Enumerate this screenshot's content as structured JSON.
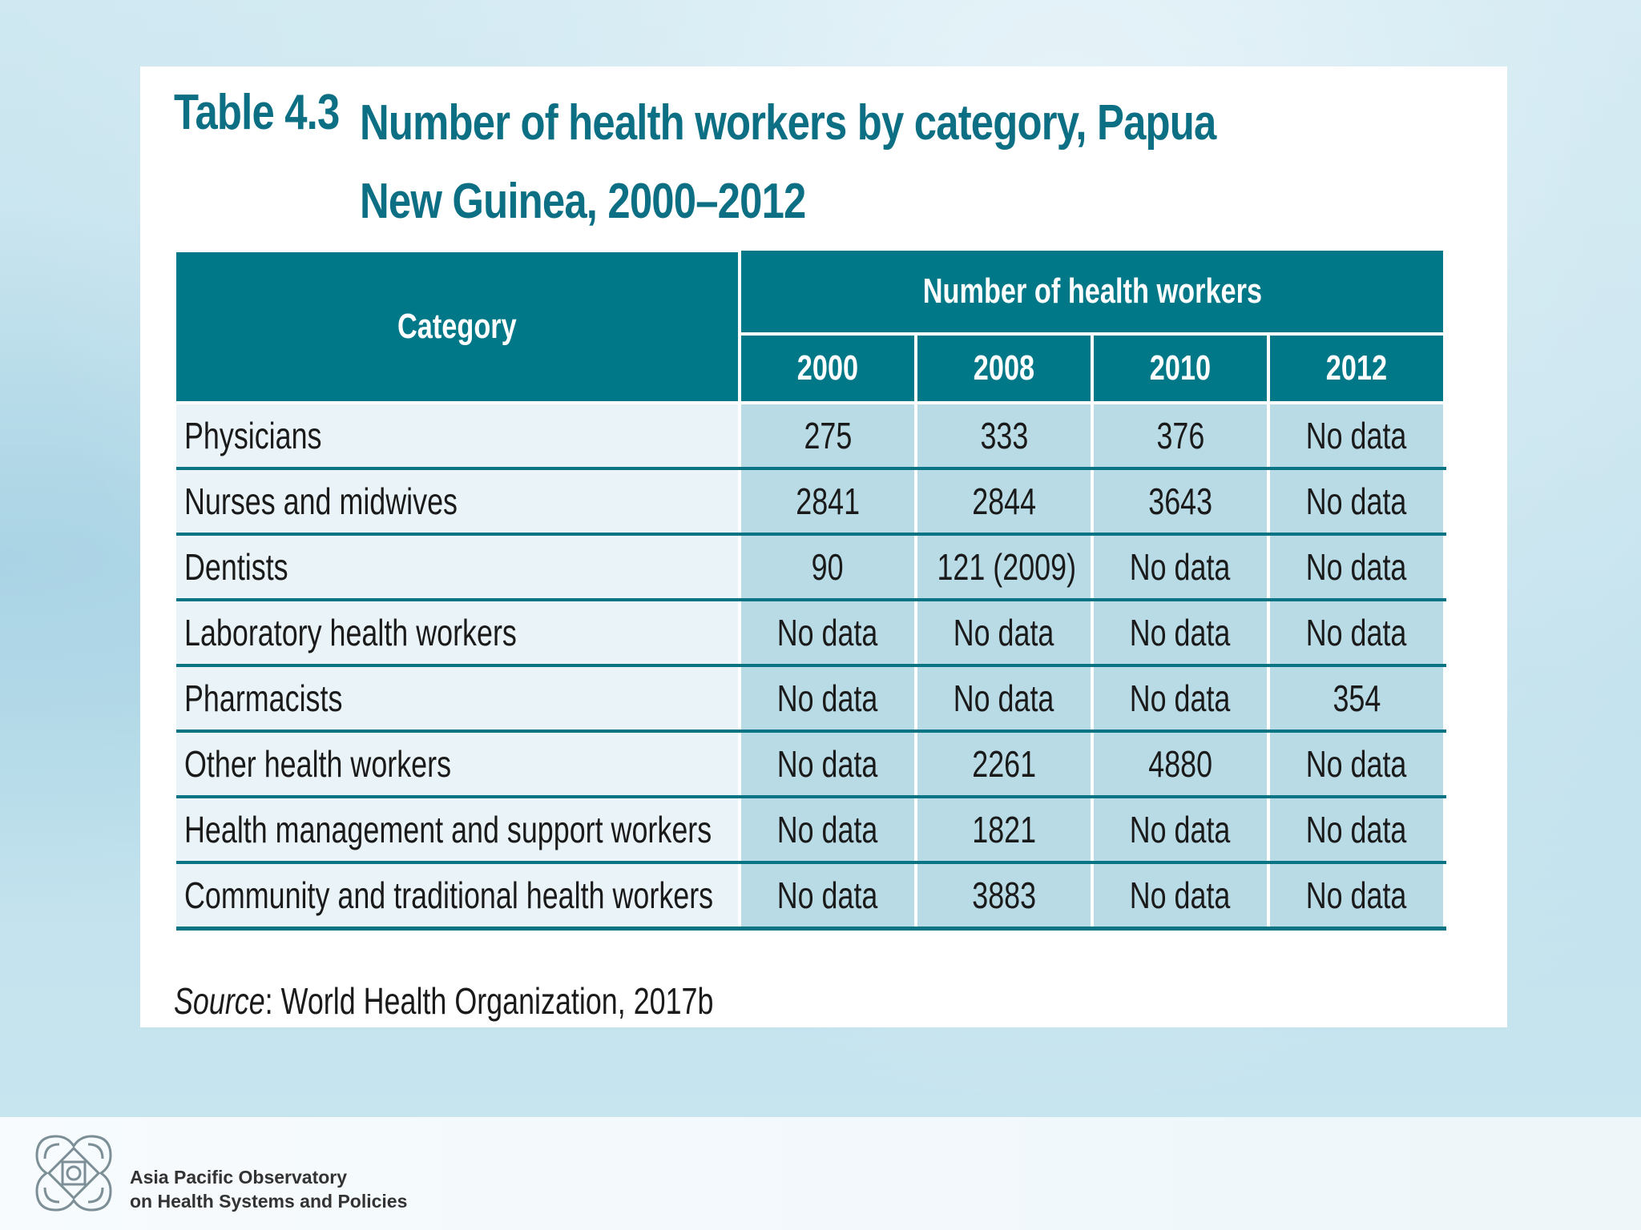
{
  "title": {
    "number": "Table 4.3",
    "text": "Number of health workers by category, Papua New Guinea, 2000–2012"
  },
  "table": {
    "category_header": "Category",
    "group_header": "Number of health workers",
    "years": [
      "2000",
      "2008",
      "2010",
      "2012"
    ],
    "rows": [
      {
        "category": "Physicians",
        "values": [
          "275",
          "333",
          "376",
          "No data"
        ]
      },
      {
        "category": "Nurses and midwives",
        "values": [
          "2841",
          "2844",
          "3643",
          "No data"
        ]
      },
      {
        "category": "Dentists",
        "values": [
          "90",
          "121 (2009)",
          "No data",
          "No data"
        ]
      },
      {
        "category": "Laboratory health workers",
        "values": [
          "No data",
          "No data",
          "No data",
          "No data"
        ]
      },
      {
        "category": "Pharmacists",
        "values": [
          "No data",
          "No data",
          "No data",
          "354"
        ]
      },
      {
        "category": "Other health workers",
        "values": [
          "No data",
          "2261",
          "4880",
          "No data"
        ]
      },
      {
        "category": "Health management and support workers",
        "values": [
          "No data",
          "1821",
          "No data",
          "No data"
        ]
      },
      {
        "category": "Community and traditional health workers",
        "values": [
          "No data",
          "3883",
          "No data",
          "No data"
        ]
      }
    ]
  },
  "source": {
    "label": "Source",
    "text": ": World Health Organization, 2017b"
  },
  "footer": {
    "org_line1": "Asia Pacific Observatory",
    "org_line2": "on Health Systems and Policies",
    "logo_icon": "observatory-knot-logo"
  },
  "colors": {
    "header_teal": "#017888",
    "title_teal": "#0d6f83",
    "value_cell": "#b9dbe5",
    "category_cell": "#eaf4f8"
  }
}
